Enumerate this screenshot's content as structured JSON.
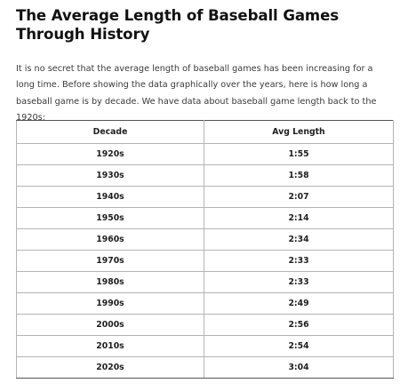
{
  "article": {
    "title": "The Average Length of Baseball Games Through History",
    "intro": "It is no secret that the average length of baseball games has been increasing for a long time. Before showing the data graphically over the years, here is how long a baseball game is by decade. We have data about baseball game length back to the 1920s:"
  },
  "table": {
    "headers": [
      "Decade",
      "Avg Length"
    ],
    "rows": [
      [
        "1920s",
        "1:55"
      ],
      [
        "1930s",
        "1:58"
      ],
      [
        "1940s",
        "2:07"
      ],
      [
        "1950s",
        "2:14"
      ],
      [
        "1960s",
        "2:34"
      ],
      [
        "1970s",
        "2:33"
      ],
      [
        "1980s",
        "2:33"
      ],
      [
        "1990s",
        "2:49"
      ],
      [
        "2000s",
        "2:56"
      ],
      [
        "2010s",
        "2:54"
      ],
      [
        "2020s",
        "3:04"
      ]
    ]
  }
}
